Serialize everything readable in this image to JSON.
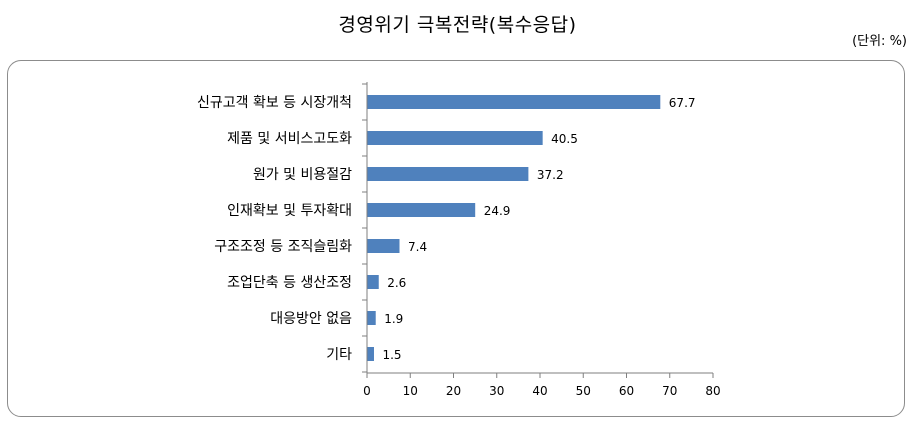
{
  "title": "경영위기  극복전략(복수응답)",
  "unit_note": "(단위: %)",
  "chart_data": {
    "type": "bar",
    "orientation": "horizontal",
    "categories": [
      "신규고객 확보 등 시장개척",
      "제품 및 서비스고도화",
      "원가 및 비용절감",
      "인재확보 및 투자확대",
      "구조조정 등 조직슬림화",
      "조업단축 등 생산조정",
      "대응방안 없음",
      "기타"
    ],
    "values": [
      67.7,
      40.5,
      37.2,
      24.9,
      7.4,
      2.6,
      1.9,
      1.5
    ],
    "value_labels": [
      "67.7",
      "40.5",
      "37.2",
      "24.9",
      "7.4",
      "2.6",
      "1.9",
      "1.5"
    ],
    "xlim": [
      0,
      80
    ],
    "xticks": [
      0,
      10,
      20,
      30,
      40,
      50,
      60,
      70,
      80
    ],
    "bar_color": "#4f81bd",
    "grid": false,
    "legend": "none"
  }
}
